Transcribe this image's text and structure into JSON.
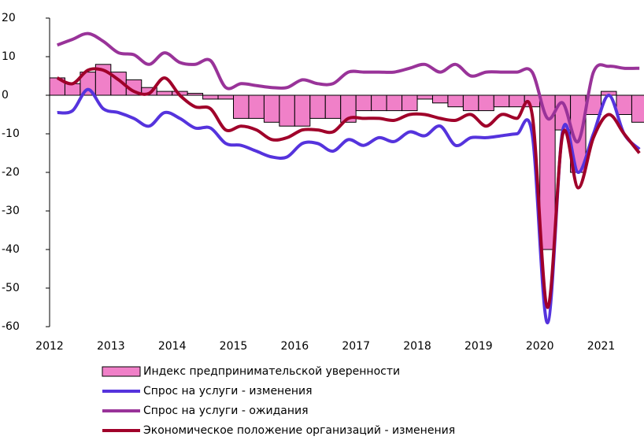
{
  "chart_data": {
    "type": "bar_line",
    "x": [
      2012.125,
      2012.375,
      2012.625,
      2012.875,
      2013.125,
      2013.375,
      2013.625,
      2013.875,
      2014.125,
      2014.375,
      2014.625,
      2014.875,
      2015.125,
      2015.375,
      2015.625,
      2015.875,
      2016.125,
      2016.375,
      2016.625,
      2016.875,
      2017.125,
      2017.375,
      2017.625,
      2017.875,
      2018.125,
      2018.375,
      2018.625,
      2018.875,
      2019.125,
      2019.375,
      2019.625,
      2019.875,
      2020.125,
      2020.375,
      2020.625,
      2020.875,
      2021.125,
      2021.375,
      2021.625
    ],
    "series": [
      {
        "name": "Индекс предпринимательской уверенности",
        "kind": "bar",
        "color": "#f080c8",
        "values": [
          4.5,
          3,
          6,
          8,
          6,
          4,
          2,
          1,
          1,
          0.5,
          -1,
          -1,
          -6,
          -6,
          -7,
          -8,
          -8,
          -6,
          -6,
          -7,
          -4,
          -4,
          -4,
          -4,
          -1,
          -2,
          -3,
          -4,
          -4,
          -3,
          -3,
          -3,
          -40,
          -9,
          -20,
          -5,
          1,
          -5,
          -7
        ]
      },
      {
        "name": "Спрос на услуги - изменения",
        "kind": "line",
        "color": "#5533dd",
        "values": [
          -4.5,
          -4,
          1.5,
          -3.5,
          -4.5,
          -6,
          -8,
          -4.5,
          -6,
          -8.5,
          -8.5,
          -12.5,
          -13,
          -14.5,
          -16,
          -16,
          -12.5,
          -12.5,
          -14.5,
          -11.5,
          -13,
          -11,
          -12,
          -9.5,
          -10.5,
          -8,
          -13,
          -11,
          -11,
          -10.5,
          -10,
          -10,
          -59,
          -9,
          -20,
          -10,
          0,
          -10,
          -14
        ]
      },
      {
        "name": "Спрос на услуги - ожидания",
        "kind": "line",
        "color": "#993399",
        "values": [
          13,
          14.5,
          16,
          14,
          11,
          10.5,
          8,
          11,
          8.5,
          8,
          9,
          2,
          3,
          2.5,
          2,
          2,
          4,
          3,
          3,
          6,
          6,
          6,
          6,
          7,
          8,
          6,
          8,
          5,
          6,
          6,
          6,
          6,
          -6,
          -2,
          -12,
          6,
          7.5,
          7,
          7
        ]
      },
      {
        "name": "Экономическое положение организаций - изменения",
        "kind": "line",
        "color": "#a0002a",
        "values": [
          4.5,
          3,
          6.5,
          6.5,
          4,
          1,
          0.5,
          4.5,
          0,
          -3,
          -3.5,
          -9,
          -8,
          -9,
          -11.5,
          -11,
          -9,
          -9,
          -9.5,
          -6,
          -6,
          -6,
          -6.5,
          -5,
          -5,
          -6,
          -6.5,
          -5,
          -8,
          -5,
          -6,
          -5,
          -55,
          -10,
          -24,
          -11,
          -5,
          -10,
          -15
        ]
      }
    ],
    "xlim": [
      2012,
      2021.7
    ],
    "xticks": [
      2012,
      2013,
      2014,
      2015,
      2016,
      2017,
      2018,
      2019,
      2020,
      2021
    ],
    "ylim": [
      -60,
      20
    ],
    "yticks": [
      -60,
      -50,
      -40,
      -30,
      -20,
      -10,
      0,
      10,
      20
    ]
  }
}
